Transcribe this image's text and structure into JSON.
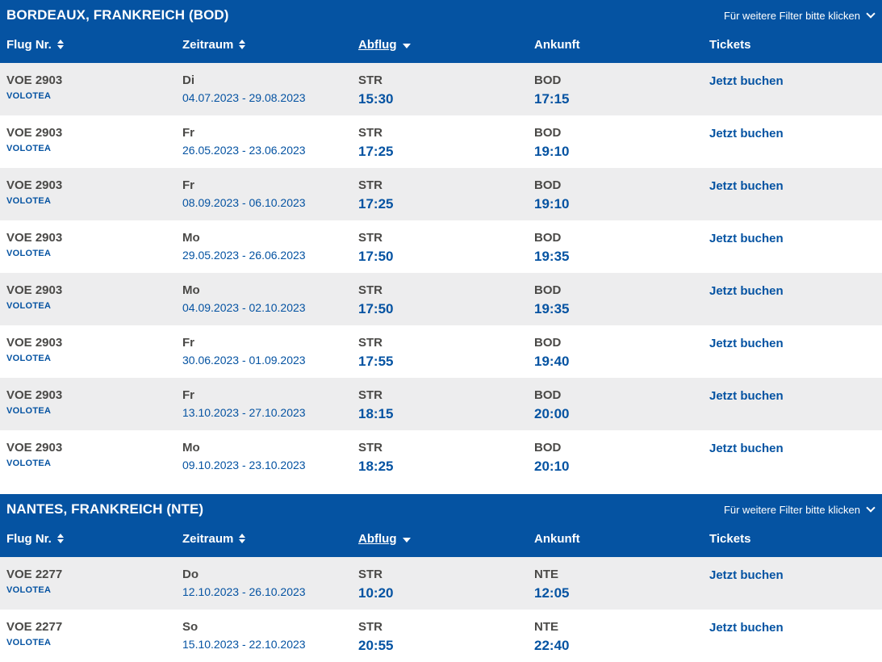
{
  "colors": {
    "brand_blue": "#0553a2",
    "row_stripe_gray": "#ededee",
    "text_dark": "#4a4947",
    "header_text": "#ffffff"
  },
  "sections": [
    {
      "title": "BORDEAUX, FRANKREICH (BOD)",
      "filter_label": "Für weitere Filter bitte klicken",
      "columns": {
        "flight": "Flug Nr.",
        "period": "Zeitraum",
        "departure": "Abflug",
        "arrival": "Ankunft",
        "tickets": "Tickets"
      },
      "rows": [
        {
          "flight_no": "VOE 2903",
          "airline": "VOLOTEA",
          "day": "Di",
          "period": "04.07.2023 - 29.08.2023",
          "dep_airport": "STR",
          "dep_time": "15:30",
          "arr_airport": "BOD",
          "arr_time": "17:15",
          "ticket_label": "Jetzt buchen"
        },
        {
          "flight_no": "VOE 2903",
          "airline": "VOLOTEA",
          "day": "Fr",
          "period": "26.05.2023 - 23.06.2023",
          "dep_airport": "STR",
          "dep_time": "17:25",
          "arr_airport": "BOD",
          "arr_time": "19:10",
          "ticket_label": "Jetzt buchen"
        },
        {
          "flight_no": "VOE 2903",
          "airline": "VOLOTEA",
          "day": "Fr",
          "period": "08.09.2023 - 06.10.2023",
          "dep_airport": "STR",
          "dep_time": "17:25",
          "arr_airport": "BOD",
          "arr_time": "19:10",
          "ticket_label": "Jetzt buchen"
        },
        {
          "flight_no": "VOE 2903",
          "airline": "VOLOTEA",
          "day": "Mo",
          "period": "29.05.2023 - 26.06.2023",
          "dep_airport": "STR",
          "dep_time": "17:50",
          "arr_airport": "BOD",
          "arr_time": "19:35",
          "ticket_label": "Jetzt buchen"
        },
        {
          "flight_no": "VOE 2903",
          "airline": "VOLOTEA",
          "day": "Mo",
          "period": "04.09.2023 - 02.10.2023",
          "dep_airport": "STR",
          "dep_time": "17:50",
          "arr_airport": "BOD",
          "arr_time": "19:35",
          "ticket_label": "Jetzt buchen"
        },
        {
          "flight_no": "VOE 2903",
          "airline": "VOLOTEA",
          "day": "Fr",
          "period": "30.06.2023 - 01.09.2023",
          "dep_airport": "STR",
          "dep_time": "17:55",
          "arr_airport": "BOD",
          "arr_time": "19:40",
          "ticket_label": "Jetzt buchen"
        },
        {
          "flight_no": "VOE 2903",
          "airline": "VOLOTEA",
          "day": "Fr",
          "period": "13.10.2023 - 27.10.2023",
          "dep_airport": "STR",
          "dep_time": "18:15",
          "arr_airport": "BOD",
          "arr_time": "20:00",
          "ticket_label": "Jetzt buchen"
        },
        {
          "flight_no": "VOE 2903",
          "airline": "VOLOTEA",
          "day": "Mo",
          "period": "09.10.2023 - 23.10.2023",
          "dep_airport": "STR",
          "dep_time": "18:25",
          "arr_airport": "BOD",
          "arr_time": "20:10",
          "ticket_label": "Jetzt buchen"
        }
      ]
    },
    {
      "title": "NANTES, FRANKREICH (NTE)",
      "filter_label": "Für weitere Filter bitte klicken",
      "columns": {
        "flight": "Flug Nr.",
        "period": "Zeitraum",
        "departure": "Abflug",
        "arrival": "Ankunft",
        "tickets": "Tickets"
      },
      "rows": [
        {
          "flight_no": "VOE 2277",
          "airline": "VOLOTEA",
          "day": "Do",
          "period": "12.10.2023 - 26.10.2023",
          "dep_airport": "STR",
          "dep_time": "10:20",
          "arr_airport": "NTE",
          "arr_time": "12:05",
          "ticket_label": "Jetzt buchen"
        },
        {
          "flight_no": "VOE 2277",
          "airline": "VOLOTEA",
          "day": "So",
          "period": "15.10.2023 - 22.10.2023",
          "dep_airport": "STR",
          "dep_time": "20:55",
          "arr_airport": "NTE",
          "arr_time": "22:40",
          "ticket_label": "Jetzt buchen"
        }
      ]
    }
  ]
}
